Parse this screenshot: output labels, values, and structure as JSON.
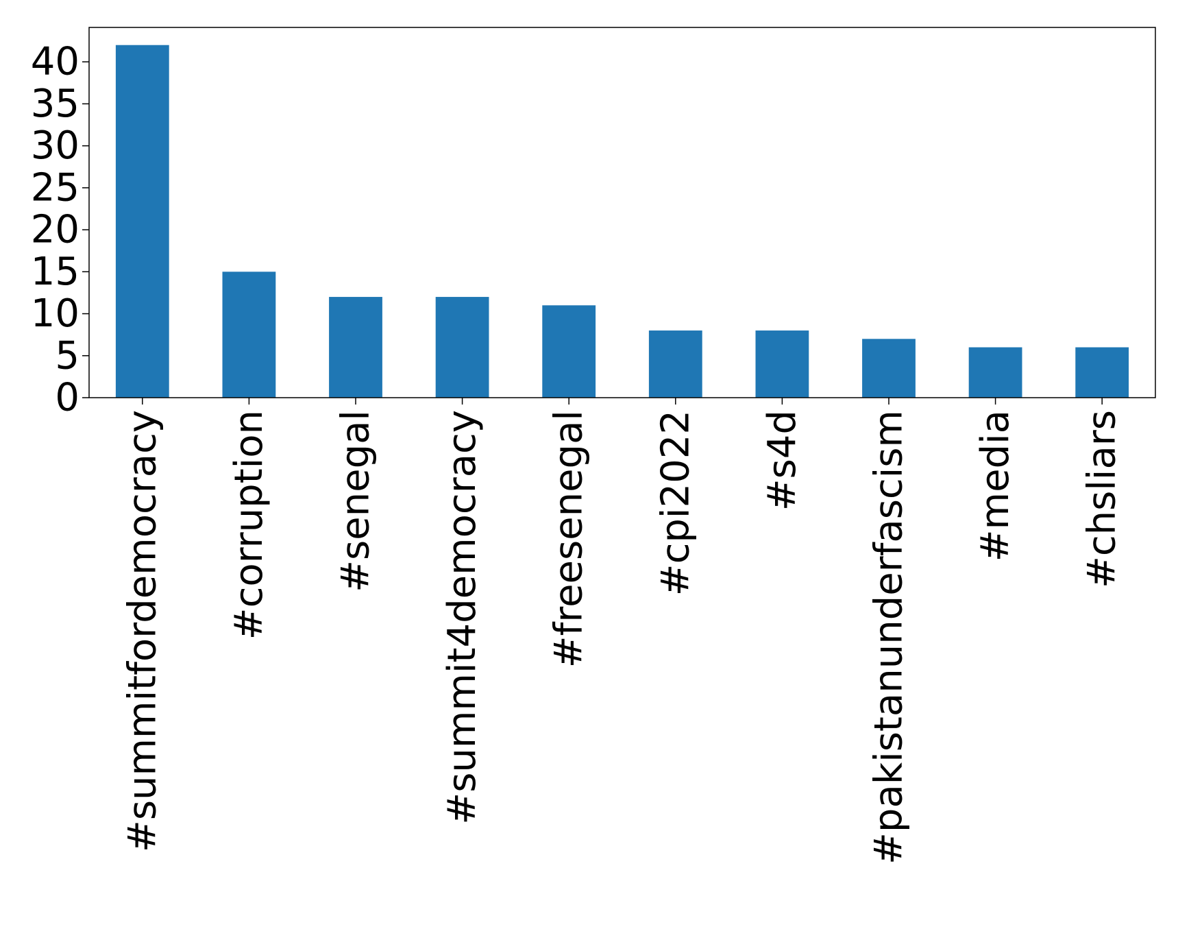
{
  "chart_data": {
    "type": "bar",
    "title": "",
    "xlabel": "",
    "ylabel": "",
    "categories": [
      "#summitfordemocracy",
      "#corruption",
      "#senegal",
      "#summit4democracy",
      "#freesenegal",
      "#cpi2022",
      "#s4d",
      "#pakistanunderfascism",
      "#media",
      "#chsliars"
    ],
    "values": [
      42,
      15,
      12,
      12,
      11,
      8,
      8,
      7,
      6,
      6
    ],
    "ylim": [
      0,
      44.1
    ],
    "yticks": [
      0,
      5,
      10,
      15,
      20,
      25,
      30,
      35,
      40
    ],
    "bar_color": "#1f77b4",
    "grid": false,
    "legend": "none"
  }
}
